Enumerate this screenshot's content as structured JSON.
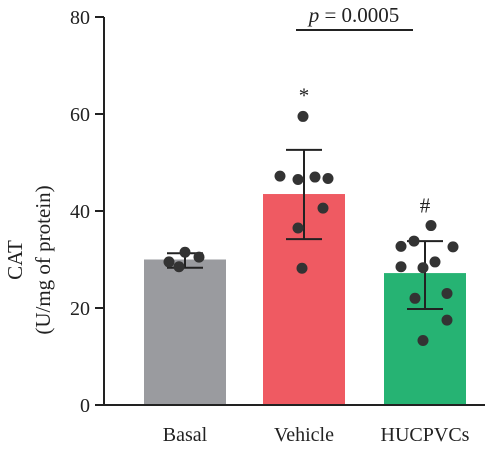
{
  "chart_data": {
    "type": "bar",
    "title": "",
    "xlabel": "",
    "ylabel_line1": "CAT",
    "ylabel_line2": "(U/mg of protein)",
    "ylim": [
      0,
      80
    ],
    "yticks": [
      0,
      20,
      40,
      60,
      80
    ],
    "categories": [
      "Basal",
      "Vehicle",
      "HUCPVCs"
    ],
    "bars": [
      {
        "category": "Basal",
        "mean": 30,
        "sd_low": 28.3,
        "sd_high": 31.3,
        "color": "#9a9b9f",
        "points": [
          29.5,
          31.5,
          30.5,
          28.5
        ]
      },
      {
        "category": "Vehicle",
        "mean": 43.5,
        "sd_low": 34.2,
        "sd_high": 52.6,
        "color": "#ef5a62",
        "points": [
          59.5,
          47.2,
          46.5,
          47.0,
          46.7,
          40.6,
          36.5,
          28.2
        ]
      },
      {
        "category": "HUCPVCs",
        "mean": 27.2,
        "sd_low": 19.8,
        "sd_high": 33.8,
        "color": "#26b373",
        "points": [
          37.0,
          33.8,
          32.7,
          32.6,
          29.5,
          28.5,
          28.3,
          23.0,
          22.0,
          17.5,
          13.3
        ]
      }
    ],
    "annotations": {
      "vehicle_mark": "*",
      "hucpvcs_mark": "#",
      "p_label": "p",
      "p_value": " = 0.0005"
    }
  }
}
